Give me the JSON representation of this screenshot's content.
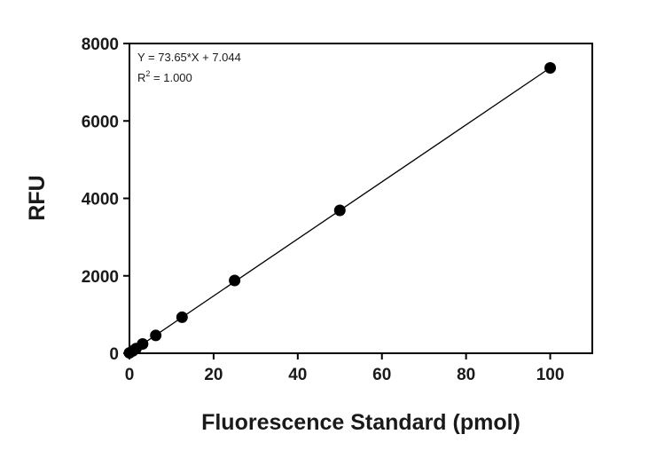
{
  "chart_data": {
    "type": "scatter",
    "title": "",
    "xlabel": "Fluorescence Standard (pmol)",
    "ylabel": "RFU",
    "xlim": [
      0,
      110
    ],
    "ylim": [
      0,
      8000
    ],
    "x_ticks": [
      0,
      20,
      40,
      60,
      80,
      100
    ],
    "y_ticks": [
      0,
      2000,
      4000,
      6000,
      8000
    ],
    "x_tick_labels": [
      "0",
      "20",
      "40",
      "60",
      "80",
      "100"
    ],
    "y_tick_labels": [
      "0",
      "2000",
      "4000",
      "6000",
      "8000"
    ],
    "grid": false,
    "legend": "none",
    "series": [
      {
        "x": [
          0,
          0.78,
          1.56,
          3.125,
          6.25,
          12.5,
          25,
          50,
          100
        ],
        "y": [
          10,
          60,
          120,
          240,
          460,
          930,
          1880,
          3690,
          7370
        ],
        "marker": "filled-circle",
        "color": "#000000"
      }
    ],
    "fit": {
      "type": "linear",
      "slope": 73.65,
      "intercept": 7.044,
      "x_range": [
        0,
        100
      ],
      "color": "#000000"
    },
    "annotations": {
      "equation": "Y = 73.65*X + 7.044",
      "r2_base": "R",
      "r2_sup": "2",
      "r2_rest": " = 1.000"
    }
  }
}
